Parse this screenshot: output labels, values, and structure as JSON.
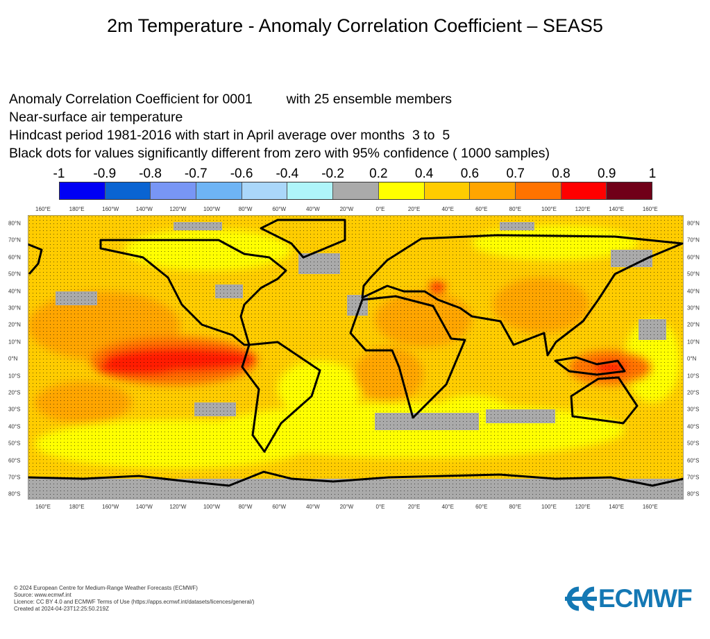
{
  "title": "2m Temperature - Anomaly Correlation Coefficient – SEAS5",
  "info": [
    "Anomaly Correlation Coefficient for 0001         with 25 ensemble members",
    "Near-surface air temperature",
    "Hindcast period 1981-2016 with start in April average over months  3 to  5",
    "Black dots for values significantly different from zero with 95% confidence ( 1000 samples)"
  ],
  "colorbar": {
    "labels": [
      "-1",
      "-0.9",
      "-0.8",
      "-0.7",
      "-0.6",
      "-0.4",
      "-0.2",
      "0.2",
      "0.4",
      "0.6",
      "0.7",
      "0.8",
      "0.9",
      "1"
    ],
    "colors": [
      "#0000f5",
      "#0a64d2",
      "#7896f5",
      "#6eb4f5",
      "#aad7fa",
      "#aff5fa",
      "#aaaaaa",
      "#ffff00",
      "#ffcc00",
      "#ffa500",
      "#ff7300",
      "#ff0000",
      "#700018"
    ]
  },
  "lon_labels": [
    "160°E",
    "180°E",
    "160°W",
    "140°W",
    "120°W",
    "100°W",
    "80°W",
    "60°W",
    "40°W",
    "20°W",
    "0°E",
    "20°E",
    "40°E",
    "60°E",
    "80°E",
    "100°E",
    "120°E",
    "140°E",
    "160°E"
  ],
  "lat_labels": [
    "80°N",
    "70°N",
    "60°N",
    "50°N",
    "40°N",
    "30°N",
    "20°N",
    "10°N",
    "0°N",
    "10°S",
    "20°S",
    "30°S",
    "40°S",
    "50°S",
    "60°S",
    "70°S",
    "80°S"
  ],
  "footer": [
    "© 2024 European Centre for Medium-Range Weather Forecasts (ECMWF)",
    "Source: www.ecmwf.int",
    "Licence: CC BY 4.0 and ECMWF Terms of Use (https://apps.ecmwf.int/datasets/licences/general/)",
    "Created at 2024-04-23T12:25:50.219Z"
  ],
  "logo": "ECMWF"
}
